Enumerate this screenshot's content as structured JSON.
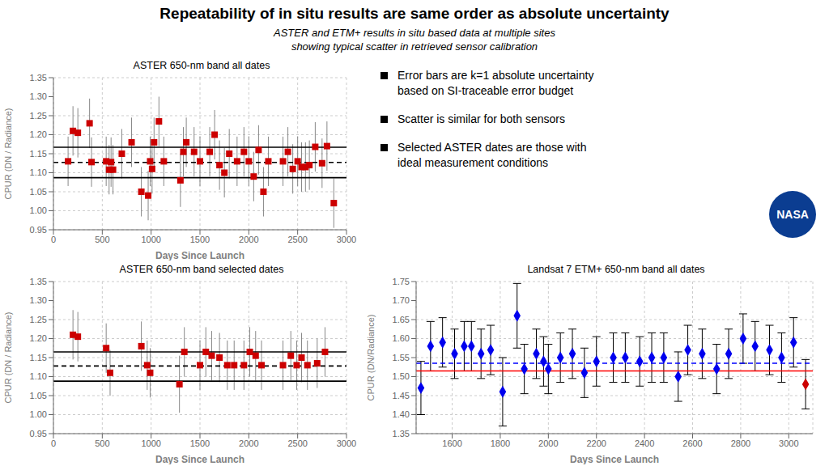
{
  "title": "Repeatability of in situ results are same order as absolute uncertainty",
  "subtitle": "ASTER and ETM+ results in situ based data at multiple sites\nshowing typical scatter in retrieved sensor calibration",
  "annotations": [
    "Error bars are k=1 absolute uncertainty\nbased on SI-traceable error budget",
    "Scatter is similar for both sensors",
    "Selected ASTER dates are those with\nideal measurement conditions"
  ],
  "logo": "NASA",
  "chart_data": [
    {
      "type": "scatter",
      "title": "ASTER 650-nm band all dates",
      "xlabel": "Days Since Launch",
      "ylabel": "CPUR (DN / Radiance)",
      "xlim": [
        0,
        3000
      ],
      "xticks": [
        0,
        500,
        1000,
        1500,
        2000,
        2500,
        3000
      ],
      "ylim": [
        0.95,
        1.35
      ],
      "yticks": [
        0.95,
        {
          "value": 1.0,
          "label": "1.00"
        },
        1.05,
        {
          "value": 1.1,
          "label": "1.10"
        },
        1.15,
        {
          "value": 1.2,
          "label": "1.20"
        },
        1.25,
        {
          "value": 1.3,
          "label": "1.30"
        },
        1.35
      ],
      "grid": true,
      "series": [
        {
          "color": "#cc0000",
          "marker": "square",
          "x": [
            150,
            200,
            250,
            370,
            390,
            540,
            570,
            590,
            610,
            700,
            800,
            900,
            970,
            990,
            1010,
            1030,
            1080,
            1130,
            1300,
            1330,
            1360,
            1440,
            1500,
            1600,
            1650,
            1700,
            1750,
            1800,
            1880,
            1950,
            2000,
            2050,
            2100,
            2150,
            2200,
            2350,
            2400,
            2450,
            2500,
            2540,
            2580,
            2620,
            2680,
            2750,
            2800,
            2870
          ],
          "values": [
            1.13,
            1.21,
            1.205,
            1.23,
            1.128,
            1.13,
            1.108,
            1.128,
            1.108,
            1.15,
            1.18,
            1.05,
            1.04,
            1.13,
            1.11,
            1.18,
            1.235,
            1.13,
            1.08,
            1.155,
            1.18,
            1.155,
            1.13,
            1.155,
            1.2,
            1.12,
            1.1,
            1.15,
            1.13,
            1.155,
            1.13,
            1.09,
            1.16,
            1.05,
            1.13,
            1.13,
            1.155,
            1.11,
            1.13,
            1.115,
            1.115,
            1.12,
            1.168,
            1.125,
            1.17,
            1.02
          ],
          "yerr": [
            0.065,
            0.065,
            0.065,
            0.065,
            0.065,
            0.065,
            0.065,
            0.065,
            0.065,
            0.065,
            0.065,
            0.065,
            0.065,
            0.065,
            0.065,
            0.065,
            0.065,
            0.065,
            0.07,
            0.065,
            0.065,
            0.065,
            0.065,
            0.065,
            0.065,
            0.065,
            0.065,
            0.065,
            0.065,
            0.065,
            0.065,
            0.065,
            0.065,
            0.065,
            0.065,
            0.065,
            0.065,
            0.065,
            0.065,
            0.065,
            0.065,
            0.065,
            0.065,
            0.065,
            0.065,
            0.065
          ]
        }
      ],
      "hlines": [
        {
          "value": 1.127,
          "line_style": "dashed",
          "color": "#000000"
        },
        {
          "value": 1.167,
          "line_style": "solid",
          "color": "#000000"
        },
        {
          "value": 1.087,
          "line_style": "solid",
          "color": "#000000"
        }
      ]
    },
    {
      "type": "scatter",
      "title": "ASTER 650-nm band selected dates",
      "xlabel": "Days Since Launch",
      "ylabel": "CPUR (DN / Radiance)",
      "xlim": [
        0,
        3000
      ],
      "xticks": [
        0,
        500,
        1000,
        1500,
        2000,
        2500,
        3000
      ],
      "ylim": [
        0.95,
        1.35
      ],
      "yticks": [
        0.95,
        {
          "value": 1.0,
          "label": "1.00"
        },
        1.05,
        {
          "value": 1.1,
          "label": "1.10"
        },
        1.15,
        {
          "value": 1.2,
          "label": "1.20"
        },
        1.25,
        {
          "value": 1.3,
          "label": "1.30"
        },
        1.35
      ],
      "grid": true,
      "series": [
        {
          "color": "#cc0000",
          "marker": "square",
          "x": [
            200,
            250,
            540,
            580,
            900,
            960,
            990,
            1290,
            1340,
            1500,
            1560,
            1620,
            1700,
            1780,
            1850,
            1950,
            2010,
            2070,
            2130,
            2350,
            2430,
            2490,
            2540,
            2600,
            2700,
            2780
          ],
          "values": [
            1.21,
            1.205,
            1.175,
            1.11,
            1.18,
            1.13,
            1.11,
            1.08,
            1.165,
            1.13,
            1.165,
            1.155,
            1.15,
            1.13,
            1.13,
            1.13,
            1.165,
            1.155,
            1.13,
            1.13,
            1.155,
            1.13,
            1.15,
            1.13,
            1.135,
            1.165
          ],
          "yerr": [
            0.065,
            0.065,
            0.065,
            0.06,
            0.065,
            0.065,
            0.065,
            0.075,
            0.065,
            0.065,
            0.065,
            0.065,
            0.065,
            0.065,
            0.065,
            0.065,
            0.065,
            0.065,
            0.065,
            0.065,
            0.065,
            0.065,
            0.065,
            0.065,
            0.065,
            0.065
          ]
        }
      ],
      "hlines": [
        {
          "value": 1.128,
          "line_style": "dashed",
          "color": "#000000"
        },
        {
          "value": 1.165,
          "line_style": "solid",
          "color": "#000000"
        },
        {
          "value": 1.088,
          "line_style": "solid",
          "color": "#000000"
        }
      ]
    },
    {
      "type": "scatter",
      "title": "Landsat 7 ETM+ 650-nm band all dates",
      "xlabel": "Days Since Launch",
      "ylabel": "CPUR (DN/Radiance)",
      "xlim": [
        1450,
        3100
      ],
      "xticks": [
        1600,
        1800,
        2000,
        2200,
        2400,
        2600,
        2800,
        3000
      ],
      "ylim": [
        1.35,
        1.75
      ],
      "yticks": [
        1.35,
        {
          "value": 1.4,
          "label": "1.40"
        },
        1.45,
        {
          "value": 1.5,
          "label": "1.50"
        },
        1.55,
        {
          "value": 1.6,
          "label": "1.60"
        },
        1.65,
        {
          "value": 1.7,
          "label": "1.70"
        },
        1.75
      ],
      "grid": true,
      "series": [
        {
          "color": "#0000ee",
          "marker": "diamond",
          "x": [
            1470,
            1510,
            1560,
            1610,
            1650,
            1680,
            1720,
            1760,
            1810,
            1870,
            1900,
            1950,
            1980,
            2000,
            2050,
            2100,
            2150,
            2200,
            2270,
            2320,
            2380,
            2430,
            2480,
            2540,
            2580,
            2640,
            2700,
            2750,
            2810,
            2860,
            2920,
            2970,
            3020
          ],
          "values": [
            1.47,
            1.58,
            1.59,
            1.56,
            1.58,
            1.58,
            1.56,
            1.57,
            1.46,
            1.66,
            1.52,
            1.56,
            1.54,
            1.52,
            1.55,
            1.56,
            1.51,
            1.54,
            1.55,
            1.55,
            1.54,
            1.55,
            1.55,
            1.5,
            1.57,
            1.56,
            1.52,
            1.56,
            1.6,
            1.58,
            1.57,
            1.55,
            1.59
          ],
          "yerr": [
            0.07,
            0.065,
            0.065,
            0.065,
            0.065,
            0.065,
            0.065,
            0.065,
            0.09,
            0.085,
            0.065,
            0.065,
            0.065,
            0.065,
            0.065,
            0.065,
            0.065,
            0.065,
            0.065,
            0.065,
            0.065,
            0.065,
            0.065,
            0.065,
            0.065,
            0.065,
            0.065,
            0.065,
            0.065,
            0.065,
            0.065,
            0.065,
            0.065
          ]
        },
        {
          "color": "#cc0000",
          "marker": "diamond",
          "x": [
            3070
          ],
          "values": [
            1.48
          ],
          "yerr": [
            0.065
          ]
        }
      ],
      "hlines": [
        {
          "value": 1.515,
          "line_style": "solid",
          "color": "red"
        },
        {
          "value": 1.535,
          "line_style": "dashed",
          "color": "blue"
        }
      ]
    }
  ]
}
